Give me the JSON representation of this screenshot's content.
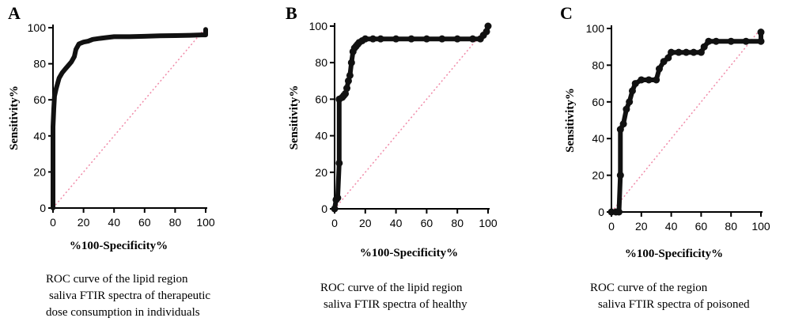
{
  "chart_data": [
    {
      "type": "line",
      "panel_label": "A",
      "xlabel": "%100-Specificity%",
      "ylabel": "Sensitivity%",
      "xlim": [
        0,
        100
      ],
      "ylim": [
        0,
        100
      ],
      "xticks": [
        0,
        20,
        40,
        60,
        80,
        100
      ],
      "yticks": [
        0,
        20,
        40,
        60,
        80,
        100
      ],
      "caption": [
        "ROC curve of the lipid region",
        "saliva FTIR spectra of therapeutic",
        "dose consumption in individuals"
      ],
      "reference_line": [
        [
          0,
          0
        ],
        [
          100,
          100
        ]
      ],
      "show_markers": false,
      "series": [
        {
          "x": [
            0,
            0,
            0.5,
            1,
            2,
            3,
            4,
            6,
            8,
            10,
            12,
            14,
            15,
            17,
            20,
            23,
            26,
            30,
            35,
            40,
            50,
            60,
            70,
            80,
            90,
            98,
            100,
            100
          ],
          "y": [
            0,
            45,
            55,
            62,
            66,
            69,
            72,
            75,
            77,
            79,
            81,
            84,
            88,
            91,
            92,
            92.5,
            93.5,
            94,
            94.5,
            95,
            95,
            95.2,
            95.5,
            95.6,
            95.8,
            96,
            96,
            99
          ]
        }
      ]
    },
    {
      "type": "line",
      "panel_label": "B",
      "xlabel": "%100-Specificity%",
      "ylabel": "Sensitivity%",
      "xlim": [
        0,
        100
      ],
      "ylim": [
        0,
        100
      ],
      "xticks": [
        0,
        20,
        40,
        60,
        80,
        100
      ],
      "yticks": [
        0,
        20,
        40,
        60,
        80,
        100
      ],
      "caption": [
        "ROC curve of the lipid region",
        "saliva FTIR spectra of healthy"
      ],
      "reference_line": [
        [
          0,
          0
        ],
        [
          100,
          100
        ]
      ],
      "show_markers": true,
      "series": [
        {
          "x": [
            0,
            1,
            2,
            3,
            3,
            5,
            6,
            7,
            8,
            9,
            10,
            11,
            12,
            13,
            14,
            15,
            16,
            18,
            20,
            25,
            30,
            40,
            50,
            60,
            70,
            80,
            90,
            95,
            97,
            99,
            100
          ],
          "y": [
            0,
            5,
            6,
            25,
            60,
            61,
            62,
            63,
            66,
            70,
            73,
            80,
            86,
            88,
            89,
            90,
            91,
            92,
            93,
            93,
            93,
            93,
            93,
            93,
            93,
            93,
            93,
            93,
            95,
            97,
            100
          ]
        }
      ]
    },
    {
      "type": "line",
      "panel_label": "C",
      "xlabel": "%100-Specificity%",
      "ylabel": "Sensitivity%",
      "xlim": [
        0,
        100
      ],
      "ylim": [
        0,
        100
      ],
      "xticks": [
        0,
        20,
        40,
        60,
        80,
        100
      ],
      "yticks": [
        0,
        20,
        40,
        60,
        80,
        100
      ],
      "caption": [
        "ROC curve of the region",
        "saliva FTIR spectra of poisoned"
      ],
      "reference_line": [
        [
          0,
          0
        ],
        [
          100,
          100
        ]
      ],
      "show_markers": true,
      "series": [
        {
          "x": [
            0,
            3,
            5,
            6,
            6,
            8,
            10,
            12,
            14,
            16,
            20,
            25,
            30,
            32,
            35,
            38,
            40,
            45,
            50,
            55,
            60,
            62,
            65,
            70,
            80,
            90,
            100,
            100
          ],
          "y": [
            0,
            0,
            0,
            20,
            45,
            48,
            56,
            60,
            66,
            70,
            72,
            72,
            72,
            78,
            82,
            84,
            87,
            87,
            87,
            87,
            87,
            90,
            93,
            93,
            93,
            93,
            93,
            98
          ]
        }
      ]
    }
  ]
}
